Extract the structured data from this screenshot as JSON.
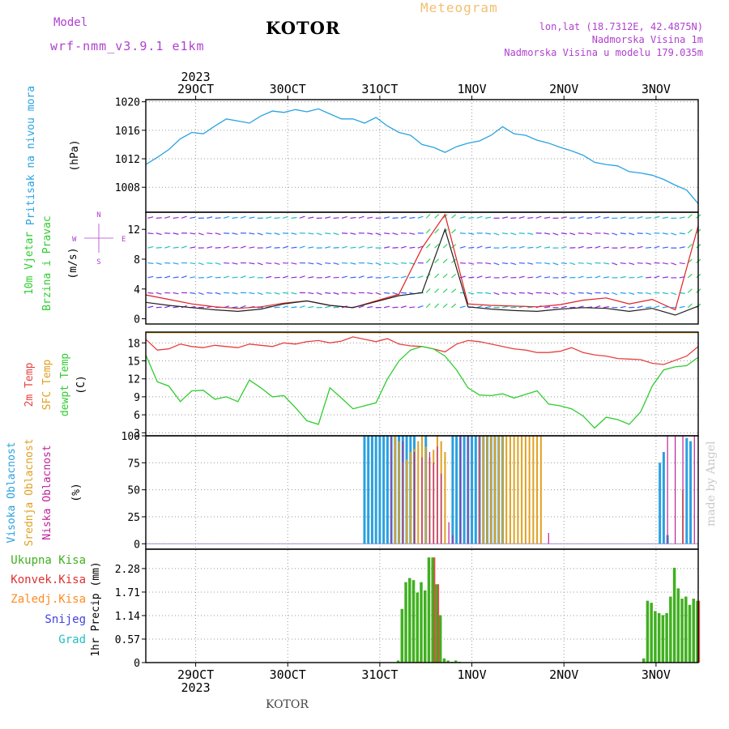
{
  "header": {
    "model_label": "Model",
    "model_name": "wrf-nmm_v3.9.1 e1km",
    "station": "KOTOR",
    "product": "Meteogram",
    "lonlat": "lon,lat (18.7312E, 42.4875N)",
    "altitude": "Nadmorska Visina 1m",
    "model_altitude": "Nadmorska Visina u modelu 179.035m",
    "footer_station": "KOTOR",
    "watermark": "made by Angel"
  },
  "colors": {
    "pressure": "#29a3e0",
    "temp_2m": "#e84040",
    "sfc_temp": "#e0a020",
    "dewpt": "#30cc30",
    "wind_speed": "#202020",
    "wind_gust": "#e02020",
    "cloud_high": "#2aa0e0",
    "cloud_mid": "#e0a020",
    "cloud_low": "#c0209a",
    "precip_total": "#40b020",
    "precip_conv": "#e03030",
    "precip_frz": "#ff8c20",
    "snow": "#4040e0",
    "hail": "#20c0c0",
    "header_text": "#b040d0",
    "grid": "#999999"
  },
  "x_axis": {
    "top_year": "2023",
    "bottom_year": "2023",
    "day_labels": [
      "29OCT",
      "30OCT",
      "31OCT",
      "1NOV",
      "2NOV",
      "3NOV"
    ]
  },
  "chart_data": [
    {
      "type": "line",
      "panel": "pressure",
      "title_lines": [
        "Pritisak na nivou mora"
      ],
      "ylabel": "(hPa)",
      "yticks": [
        "1020",
        "1016",
        "1012",
        "1008"
      ],
      "ylim": [
        1004.5,
        1020.3
      ],
      "x_unit": "hours since start",
      "series": [
        {
          "x": [
            0,
            3,
            6,
            9,
            12,
            15,
            18,
            21,
            24,
            27,
            30,
            33,
            36,
            39,
            42,
            45,
            48,
            51,
            54,
            57,
            60,
            63,
            66,
            69,
            72,
            75,
            78,
            81,
            84,
            87,
            90,
            93,
            96,
            99,
            102,
            105,
            108,
            111,
            114,
            117,
            120,
            123,
            126,
            129,
            132,
            135,
            138,
            141,
            144
          ],
          "values": [
            1011.2,
            1012.2,
            1013.3,
            1014.8,
            1015.7,
            1015.5,
            1016.6,
            1017.6,
            1017.3,
            1017.0,
            1018.0,
            1018.7,
            1018.5,
            1018.9,
            1018.6,
            1019.0,
            1018.3,
            1017.6,
            1017.6,
            1017.0,
            1017.8,
            1016.6,
            1015.7,
            1015.3,
            1014.0,
            1013.6,
            1012.9,
            1013.7,
            1014.2,
            1014.5,
            1015.3,
            1016.5,
            1015.5,
            1015.3,
            1014.6,
            1014.2,
            1013.6,
            1013.1,
            1012.5,
            1011.5,
            1011.2,
            1011.0,
            1010.2,
            1010.0,
            1009.7,
            1009.1,
            1008.3,
            1007.6,
            1005.7
          ]
        }
      ]
    },
    {
      "type": "line",
      "panel": "wind",
      "title_lines": [
        "10m Vjetar",
        "Brzina i Pravac"
      ],
      "ylabel": "(m/s)",
      "compass": {
        "n": "N",
        "s": "S",
        "e": "E",
        "w": "W"
      },
      "yticks": [
        "0",
        "4",
        "8",
        "12"
      ],
      "ylim": [
        -0.7,
        14.3
      ],
      "series": [
        {
          "name": "speed",
          "x": [
            0,
            6,
            12,
            18,
            24,
            30,
            36,
            42,
            48,
            54,
            60,
            66,
            72,
            78,
            84,
            90,
            96,
            102,
            108,
            114,
            120,
            126,
            132,
            138,
            144
          ],
          "values": [
            2.2,
            1.8,
            1.5,
            1.2,
            1.0,
            1.3,
            2.0,
            2.4,
            1.8,
            1.5,
            2.3,
            3.1,
            3.5,
            12.0,
            1.6,
            1.3,
            1.1,
            1.0,
            1.3,
            1.5,
            1.4,
            1.0,
            1.4,
            0.5,
            1.7
          ]
        },
        {
          "name": "gust",
          "x": [
            0,
            6,
            12,
            18,
            24,
            30,
            36,
            42,
            48,
            54,
            60,
            66,
            72,
            78,
            84,
            90,
            96,
            102,
            108,
            114,
            120,
            126,
            132,
            138,
            144
          ],
          "values": [
            3.2,
            2.6,
            2.0,
            1.6,
            1.4,
            1.6,
            2.1,
            2.4,
            1.8,
            1.5,
            2.4,
            3.3,
            9.5,
            14.0,
            2.0,
            1.8,
            1.7,
            1.6,
            1.9,
            2.5,
            2.8,
            2.0,
            2.6,
            1.2,
            12.5
          ]
        }
      ]
    },
    {
      "type": "line",
      "panel": "temperature",
      "title_lines": [
        "2m Temp",
        "SFC Temp",
        "dewpt Temp"
      ],
      "ylabel": "(C)",
      "yticks": [
        "3",
        "6",
        "9",
        "12",
        "15",
        "18"
      ],
      "ylim": [
        2.5,
        19.8
      ],
      "series": [
        {
          "name": "2m Temp",
          "x": [
            0,
            3,
            6,
            9,
            12,
            15,
            18,
            21,
            24,
            27,
            30,
            33,
            36,
            39,
            42,
            45,
            48,
            51,
            54,
            57,
            60,
            63,
            66,
            69,
            72,
            75,
            78,
            81,
            84,
            87,
            90,
            93,
            96,
            99,
            102,
            105,
            108,
            111,
            114,
            117,
            120,
            123,
            126,
            129,
            132,
            135,
            138,
            141,
            144
          ],
          "values": [
            18.6,
            16.8,
            17.0,
            17.8,
            17.4,
            17.2,
            17.6,
            17.4,
            17.2,
            17.8,
            17.6,
            17.4,
            18.0,
            17.8,
            18.2,
            18.4,
            18.0,
            18.3,
            19.0,
            18.6,
            18.2,
            18.7,
            17.8,
            17.5,
            17.4,
            17.0,
            16.5,
            17.8,
            18.4,
            18.2,
            17.8,
            17.4,
            17.0,
            16.8,
            16.4,
            16.4,
            16.6,
            17.2,
            16.4,
            16.0,
            15.8,
            15.4,
            15.3,
            15.2,
            14.6,
            14.4,
            15.1,
            15.8,
            17.4
          ]
        },
        {
          "name": "SFC Temp",
          "x": [
            0,
            144
          ],
          "values": [
            19.7,
            19.7
          ]
        },
        {
          "name": "dewpt Temp",
          "x": [
            0,
            3,
            6,
            9,
            12,
            15,
            18,
            21,
            24,
            27,
            30,
            33,
            36,
            39,
            42,
            45,
            48,
            51,
            54,
            57,
            60,
            63,
            66,
            69,
            72,
            75,
            78,
            81,
            84,
            87,
            90,
            93,
            96,
            99,
            102,
            105,
            108,
            111,
            114,
            117,
            120,
            123,
            126,
            129,
            132,
            135,
            138,
            141,
            144
          ],
          "values": [
            16.0,
            11.5,
            10.8,
            8.2,
            10.0,
            10.1,
            8.6,
            9.0,
            8.2,
            11.8,
            10.5,
            9.0,
            9.2,
            7.2,
            5.0,
            4.4,
            10.5,
            8.8,
            7.0,
            7.5,
            8.0,
            12.0,
            15.0,
            16.8,
            17.4,
            17.0,
            15.8,
            13.5,
            10.5,
            9.3,
            9.2,
            9.5,
            8.8,
            9.4,
            10.0,
            7.8,
            7.5,
            7.0,
            5.8,
            3.8,
            5.6,
            5.2,
            4.4,
            6.5,
            10.8,
            13.5,
            14.0,
            14.2,
            15.6
          ]
        }
      ]
    },
    {
      "type": "bar",
      "panel": "clouds",
      "title_lines": [
        "Visoka Oblacnost",
        "Srednja Oblacnost",
        "Niska Oblacnost"
      ],
      "ylabel": "(%)",
      "yticks": [
        "0",
        "25",
        "50",
        "75",
        "100"
      ],
      "ylim": [
        -5,
        100
      ],
      "series": [
        {
          "name": "Visoka Oblacnost",
          "x": [
            57,
            58,
            59,
            60,
            61,
            62,
            63,
            64,
            65,
            66,
            67,
            68,
            69,
            70,
            73,
            80,
            81,
            82,
            83,
            84,
            85,
            86,
            87,
            88,
            89,
            90,
            91,
            92,
            93,
            134,
            135,
            136,
            141,
            142
          ],
          "values": [
            100,
            100,
            100,
            100,
            100,
            100,
            100,
            100,
            100,
            100,
            100,
            100,
            100,
            100,
            100,
            100,
            100,
            100,
            100,
            100,
            100,
            100,
            100,
            100,
            100,
            100,
            100,
            100,
            100,
            75,
            85,
            8,
            98,
            95
          ]
        },
        {
          "name": "Srednja Oblacnost",
          "x": [
            65,
            66,
            67,
            68,
            69,
            70,
            71,
            72,
            73,
            74,
            75,
            76,
            77,
            78,
            87,
            88,
            89,
            90,
            91,
            92,
            93,
            94,
            95,
            96,
            97,
            98,
            99,
            100,
            101,
            102,
            103,
            140
          ],
          "values": [
            100,
            95,
            75,
            78,
            85,
            88,
            95,
            100,
            90,
            80,
            87,
            100,
            95,
            85,
            100,
            100,
            100,
            100,
            100,
            100,
            100,
            100,
            100,
            100,
            100,
            100,
            100,
            100,
            100,
            100,
            100,
            50
          ]
        },
        {
          "name": "Niska Oblacnost",
          "x": [
            64,
            67,
            70,
            72,
            74,
            75,
            76,
            77,
            79,
            80,
            82,
            84,
            87,
            105,
            136,
            138,
            140,
            143
          ],
          "values": [
            100,
            95,
            85,
            80,
            85,
            75,
            90,
            65,
            20,
            8,
            100,
            100,
            100,
            10,
            100,
            100,
            100,
            100
          ]
        }
      ]
    },
    {
      "type": "bar",
      "panel": "precipitation",
      "title_lines": [
        "Ukupna Kisa",
        "Konvek.Kisa",
        "Zaledj.Kisa",
        "Snijeg",
        "Grad"
      ],
      "ylabel": "1hr Precip (mm)",
      "yticks": [
        "0",
        "0.57",
        "1.14",
        "1.71",
        "2.28"
      ],
      "ylim": [
        0,
        2.75
      ],
      "series": [
        {
          "name": "Ukupna Kisa",
          "x": [
            66,
            67,
            68,
            69,
            70,
            71,
            72,
            73,
            74,
            75,
            76,
            77,
            78,
            79,
            80,
            81,
            82,
            130,
            131,
            132,
            133,
            134,
            135,
            136,
            137,
            138,
            139,
            140,
            141,
            142,
            143,
            144
          ],
          "values": [
            0.05,
            1.3,
            1.95,
            2.05,
            2.0,
            1.7,
            1.95,
            1.75,
            2.55,
            2.55,
            1.9,
            1.15,
            0.1,
            0.05,
            0.02,
            0.05,
            0.02,
            0.1,
            1.5,
            1.45,
            1.25,
            1.2,
            1.15,
            1.2,
            1.6,
            2.3,
            1.8,
            1.55,
            1.6,
            1.4,
            1.55,
            1.5
          ]
        },
        {
          "name": "Konvek.Kisa",
          "x": [
            75,
            76,
            144
          ],
          "values": [
            2.55,
            1.9,
            1.5
          ]
        },
        {
          "name": "Zaledj.Kisa",
          "x": [
            70,
            71
          ],
          "values": [
            0.02,
            0.03
          ]
        },
        {
          "name": "Snijeg",
          "x": [],
          "values": []
        },
        {
          "name": "Grad",
          "x": [],
          "values": []
        }
      ]
    }
  ]
}
